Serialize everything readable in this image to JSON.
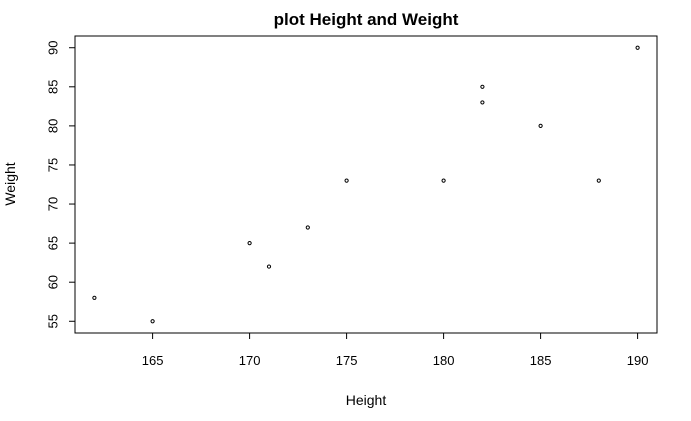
{
  "chart_data": {
    "type": "scatter",
    "title": "plot Height and Weight",
    "xlabel": "Height",
    "ylabel": "Weight",
    "xlim": [
      161,
      191
    ],
    "ylim": [
      53.5,
      91.5
    ],
    "xticks": [
      165,
      170,
      175,
      180,
      185,
      190
    ],
    "yticks": [
      55,
      60,
      65,
      70,
      75,
      80,
      85,
      90
    ],
    "grid": false,
    "legend": false,
    "x": [
      162,
      165,
      170,
      171,
      173,
      175,
      180,
      182,
      182,
      185,
      188,
      190
    ],
    "y": [
      58,
      55,
      65,
      62,
      67,
      73,
      73,
      83,
      85,
      80,
      73,
      90
    ]
  }
}
